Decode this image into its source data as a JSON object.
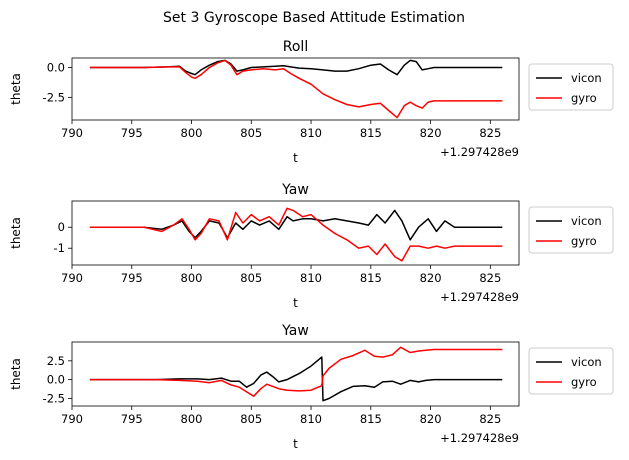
{
  "figure": {
    "suptitle": "Set 3 Gyroscope Based Attitude Estimation"
  },
  "colors": {
    "vicon": "#000000",
    "gyro": "#ff0000"
  },
  "chart_data": [
    {
      "type": "line",
      "title": "Roll",
      "xlabel": "t",
      "ylabel": "theta",
      "offset_text": "+1.297428e9",
      "xlim": [
        790.0,
        827.4
      ],
      "ylim": [
        -4.4,
        0.8
      ],
      "x_ticks": [
        "790",
        "795",
        "800",
        "805",
        "810",
        "815",
        "820",
        "825"
      ],
      "x_tick_values": [
        790,
        795,
        800,
        805,
        810,
        815,
        820,
        825
      ],
      "y_ticks": [
        "0.0",
        "-2.5"
      ],
      "y_tick_values": [
        0.0,
        -2.5
      ],
      "legend": {
        "placement": "outside-right",
        "entries": [
          "vicon",
          "gyro"
        ]
      },
      "series": [
        {
          "name": "vicon",
          "color": "#000000",
          "x": [
            791.5,
            796,
            798,
            799,
            799.5,
            800,
            800.3,
            800.8,
            801.5,
            802.2,
            802.8,
            803.3,
            803.8,
            804.3,
            805,
            806,
            807,
            807.7,
            808.3,
            809,
            810,
            811,
            812,
            813,
            814,
            815,
            815.8,
            816.5,
            817.2,
            817.8,
            818.3,
            818.8,
            819.3,
            819.8,
            820.3,
            821,
            822,
            823,
            824,
            825,
            826
          ],
          "y": [
            0,
            0,
            0.05,
            0.1,
            -0.3,
            -0.5,
            -0.6,
            -0.2,
            0.2,
            0.5,
            0.6,
            0.3,
            -0.3,
            -0.2,
            0.0,
            0.05,
            0.1,
            0.15,
            0.05,
            -0.05,
            -0.1,
            -0.2,
            -0.3,
            -0.3,
            -0.1,
            0.2,
            0.3,
            -0.2,
            -0.6,
            0.2,
            0.6,
            0.5,
            -0.2,
            -0.1,
            0.0,
            0.0,
            0.0,
            0.0,
            0.0,
            0.0,
            0.0
          ]
        },
        {
          "name": "gyro",
          "color": "#ff0000",
          "x": [
            791.5,
            796,
            798,
            799,
            799.5,
            800,
            800.3,
            800.8,
            801.5,
            802.2,
            802.8,
            803.3,
            803.8,
            804.3,
            805,
            806,
            807,
            807.7,
            808.3,
            809,
            810,
            811,
            812,
            813,
            814,
            815,
            815.8,
            816.5,
            817.2,
            817.8,
            818.3,
            818.8,
            819.3,
            819.8,
            820.3,
            821,
            822,
            823,
            824,
            825,
            826
          ],
          "y": [
            0,
            0,
            0.05,
            0.05,
            -0.4,
            -0.8,
            -0.9,
            -0.6,
            0.0,
            0.4,
            0.6,
            0.2,
            -0.6,
            -0.3,
            -0.2,
            -0.1,
            -0.2,
            -0.1,
            -0.5,
            -0.9,
            -1.4,
            -2.2,
            -2.7,
            -3.1,
            -3.3,
            -3.1,
            -3.0,
            -3.6,
            -4.2,
            -3.2,
            -2.9,
            -3.2,
            -3.4,
            -2.9,
            -2.8,
            -2.8,
            -2.8,
            -2.8,
            -2.8,
            -2.8,
            -2.8
          ]
        }
      ]
    },
    {
      "type": "line",
      "title": "Yaw",
      "xlabel": "t",
      "ylabel": "theta",
      "offset_text": "+1.297428e9",
      "xlim": [
        790.0,
        827.4
      ],
      "ylim": [
        -1.8,
        1.25
      ],
      "x_ticks": [
        "790",
        "795",
        "800",
        "805",
        "810",
        "815",
        "820",
        "825"
      ],
      "x_tick_values": [
        790,
        795,
        800,
        805,
        810,
        815,
        820,
        825
      ],
      "y_ticks": [
        "0",
        "-1"
      ],
      "y_tick_values": [
        0,
        -1
      ],
      "legend": {
        "placement": "outside-right",
        "entries": [
          "vicon",
          "gyro"
        ]
      },
      "series": [
        {
          "name": "vicon",
          "color": "#000000",
          "x": [
            791.5,
            796,
            797.5,
            798.5,
            799.2,
            799.8,
            800.3,
            800.8,
            801.5,
            802.3,
            803,
            803.7,
            804.3,
            805,
            805.7,
            806.5,
            807.3,
            808,
            808.5,
            809.3,
            810,
            811,
            812,
            813,
            814,
            814.8,
            815.5,
            816.2,
            817,
            817.6,
            818.3,
            819,
            819.8,
            820.5,
            821.2,
            822,
            823,
            824,
            825,
            826
          ],
          "y": [
            0,
            0,
            -0.1,
            0.1,
            0.3,
            -0.2,
            -0.5,
            -0.2,
            0.3,
            0.2,
            -0.5,
            0.2,
            -0.1,
            0.3,
            0.1,
            0.3,
            -0.1,
            0.5,
            0.3,
            0.4,
            0.4,
            0.3,
            0.4,
            0.3,
            0.2,
            0.1,
            0.6,
            0.2,
            0.8,
            0.3,
            -0.6,
            0.0,
            0.4,
            -0.2,
            0.3,
            0.0,
            0.0,
            0.0,
            0.0,
            0.0
          ]
        },
        {
          "name": "gyro",
          "color": "#ff0000",
          "x": [
            791.5,
            796,
            797.5,
            798.5,
            799.2,
            799.8,
            800.3,
            800.8,
            801.5,
            802.3,
            803,
            803.7,
            804.3,
            805,
            805.7,
            806.5,
            807.3,
            808,
            808.5,
            809.3,
            810,
            811,
            812,
            813,
            814,
            814.8,
            815.5,
            816.2,
            817,
            817.6,
            818.3,
            819,
            819.8,
            820.5,
            821.2,
            822,
            823,
            824,
            825,
            826
          ],
          "y": [
            0,
            0,
            -0.2,
            0.1,
            0.4,
            -0.1,
            -0.6,
            -0.3,
            0.4,
            0.3,
            -0.6,
            0.7,
            0.2,
            0.6,
            0.3,
            0.5,
            0.1,
            0.9,
            0.8,
            0.5,
            0.6,
            0.1,
            -0.3,
            -0.6,
            -1.0,
            -0.9,
            -1.3,
            -0.8,
            -1.4,
            -1.6,
            -0.9,
            -0.9,
            -1.0,
            -0.9,
            -1.0,
            -0.9,
            -0.9,
            -0.9,
            -0.9,
            -0.9
          ]
        }
      ]
    },
    {
      "type": "line",
      "title": "Yaw",
      "xlabel": "t",
      "ylabel": "theta",
      "offset_text": "+1.297428e9",
      "xlim": [
        790.0,
        827.4
      ],
      "ylim": [
        -3.5,
        5.0
      ],
      "x_ticks": [
        "790",
        "795",
        "800",
        "805",
        "810",
        "815",
        "820",
        "825"
      ],
      "x_tick_values": [
        790,
        795,
        800,
        805,
        810,
        815,
        820,
        825
      ],
      "y_ticks": [
        "2.5",
        "0.0",
        "-2.5"
      ],
      "y_tick_values": [
        2.5,
        0.0,
        -2.5
      ],
      "legend": {
        "placement": "outside-right",
        "entries": [
          "vicon",
          "gyro"
        ]
      },
      "series": [
        {
          "name": "vicon",
          "color": "#000000",
          "x": [
            791.5,
            797,
            799,
            800.5,
            801.5,
            802.5,
            803.3,
            804,
            804.6,
            805.2,
            805.8,
            806.3,
            806.8,
            807.3,
            808,
            809,
            810,
            810.9,
            811.0,
            811.5,
            812.5,
            813.5,
            814.5,
            815.3,
            816,
            816.8,
            817.5,
            818.3,
            819,
            819.6,
            820.3,
            821,
            822,
            823,
            824,
            825,
            826
          ],
          "y": [
            0,
            0,
            0.1,
            0.1,
            0.0,
            0.2,
            -0.2,
            -0.2,
            -1.0,
            -0.5,
            0.6,
            1.0,
            0.4,
            -0.3,
            0.0,
            0.8,
            1.8,
            3.0,
            -2.8,
            -2.5,
            -1.6,
            -0.9,
            -0.8,
            -1.0,
            -0.3,
            -0.2,
            -0.6,
            -0.1,
            -0.3,
            -0.1,
            0.0,
            0.0,
            0.0,
            0.0,
            0.0,
            0.0,
            0.0
          ]
        },
        {
          "name": "gyro",
          "color": "#ff0000",
          "x": [
            791.5,
            797,
            799,
            800.5,
            801.5,
            802.5,
            803.3,
            804,
            804.6,
            805.2,
            805.8,
            806.3,
            806.8,
            807.3,
            808,
            809,
            810,
            810.9,
            811.0,
            811.5,
            812.5,
            813.5,
            814.5,
            815.3,
            816,
            816.8,
            817.5,
            818.3,
            819,
            819.6,
            820.3,
            821,
            822,
            823,
            824,
            825,
            826
          ],
          "y": [
            0,
            0,
            -0.1,
            -0.2,
            -0.4,
            -0.1,
            -0.7,
            -1.0,
            -1.6,
            -2.2,
            -1.2,
            -0.6,
            -0.9,
            -1.2,
            -1.4,
            -1.5,
            -1.4,
            -0.8,
            0.5,
            1.5,
            2.7,
            3.2,
            3.9,
            3.1,
            3.0,
            3.3,
            4.3,
            3.6,
            3.8,
            3.9,
            4.0,
            4.0,
            4.0,
            4.0,
            4.0,
            4.0,
            4.0
          ]
        }
      ]
    }
  ]
}
